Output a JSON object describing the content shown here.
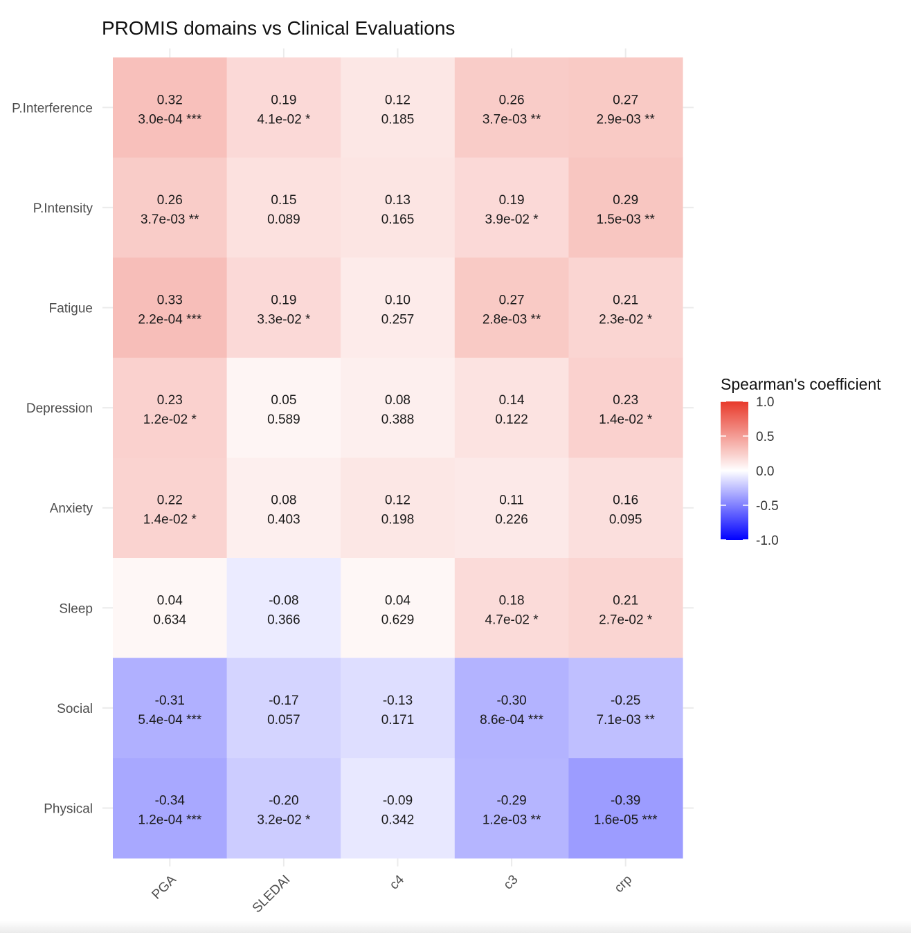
{
  "chart_data": {
    "type": "heatmap",
    "title": "PROMIS domains vs Clinical Evaluations",
    "xlabel": "",
    "ylabel": "",
    "x_categories": [
      "PGA",
      "SLEDAI",
      "c4",
      "c3",
      "crp"
    ],
    "y_categories": [
      "P.Interference",
      "P.Intensity",
      "Fatigue",
      "Depression",
      "Anxiety",
      "Sleep",
      "Social",
      "Physical"
    ],
    "cells": [
      [
        {
          "r": "0.32",
          "p": "3.0e-04 ***"
        },
        {
          "r": "0.19",
          "p": "4.1e-02 *"
        },
        {
          "r": "0.12",
          "p": "0.185"
        },
        {
          "r": "0.26",
          "p": "3.7e-03 **"
        },
        {
          "r": "0.27",
          "p": "2.9e-03 **"
        }
      ],
      [
        {
          "r": "0.26",
          "p": "3.7e-03 **"
        },
        {
          "r": "0.15",
          "p": "0.089"
        },
        {
          "r": "0.13",
          "p": "0.165"
        },
        {
          "r": "0.19",
          "p": "3.9e-02 *"
        },
        {
          "r": "0.29",
          "p": "1.5e-03 **"
        }
      ],
      [
        {
          "r": "0.33",
          "p": "2.2e-04 ***"
        },
        {
          "r": "0.19",
          "p": "3.3e-02 *"
        },
        {
          "r": "0.10",
          "p": "0.257"
        },
        {
          "r": "0.27",
          "p": "2.8e-03 **"
        },
        {
          "r": "0.21",
          "p": "2.3e-02 *"
        }
      ],
      [
        {
          "r": "0.23",
          "p": "1.2e-02 *"
        },
        {
          "r": "0.05",
          "p": "0.589"
        },
        {
          "r": "0.08",
          "p": "0.388"
        },
        {
          "r": "0.14",
          "p": "0.122"
        },
        {
          "r": "0.23",
          "p": "1.4e-02 *"
        }
      ],
      [
        {
          "r": "0.22",
          "p": "1.4e-02 *"
        },
        {
          "r": "0.08",
          "p": "0.403"
        },
        {
          "r": "0.12",
          "p": "0.198"
        },
        {
          "r": "0.11",
          "p": "0.226"
        },
        {
          "r": "0.16",
          "p": "0.095"
        }
      ],
      [
        {
          "r": "0.04",
          "p": "0.634"
        },
        {
          "r": "-0.08",
          "p": "0.366"
        },
        {
          "r": "0.04",
          "p": "0.629"
        },
        {
          "r": "0.18",
          "p": "4.7e-02 *"
        },
        {
          "r": "0.21",
          "p": "2.7e-02 *"
        }
      ],
      [
        {
          "r": "-0.31",
          "p": "5.4e-04 ***"
        },
        {
          "r": "-0.17",
          "p": "0.057"
        },
        {
          "r": "-0.13",
          "p": "0.171"
        },
        {
          "r": "-0.30",
          "p": "8.6e-04 ***"
        },
        {
          "r": "-0.25",
          "p": "7.1e-03 **"
        }
      ],
      [
        {
          "r": "-0.34",
          "p": "1.2e-04 ***"
        },
        {
          "r": "-0.20",
          "p": "3.2e-02 *"
        },
        {
          "r": "-0.09",
          "p": "0.342"
        },
        {
          "r": "-0.29",
          "p": "1.2e-03 **"
        },
        {
          "r": "-0.39",
          "p": "1.6e-05 ***"
        }
      ]
    ],
    "legend": {
      "title": "Spearman's coefficient",
      "ticks": [
        "1.0",
        "0.5",
        "0.0",
        "-0.5",
        "-1.0"
      ],
      "tick_values": [
        1.0,
        0.5,
        0.0,
        -0.5,
        -1.0
      ],
      "range": [
        -1.0,
        1.0
      ],
      "placement": "right"
    },
    "colors": {
      "low": "#0000ff",
      "mid": "#ffffff",
      "high": "#e8392a",
      "grid": "#ebebeb",
      "text": "#1a1a1a",
      "axis_text": "#4d4d4d"
    }
  }
}
